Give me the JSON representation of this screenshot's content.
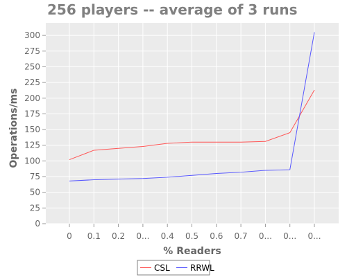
{
  "chart_data": {
    "type": "line",
    "title": "256 players -- average of 3 runs",
    "xlabel": "% Readers",
    "ylabel": "Operations/ms",
    "categories": [
      "0",
      "0.1",
      "0.2",
      "0...",
      "0.4",
      "0.5",
      "0.6",
      "0.7",
      "0...",
      "0...",
      "0..."
    ],
    "ylim": [
      0,
      320
    ],
    "yticks": [
      0,
      25,
      50,
      75,
      100,
      125,
      150,
      175,
      200,
      225,
      250,
      275,
      300
    ],
    "grid": true,
    "legend_position": "bottom-center",
    "series": [
      {
        "name": "CSL",
        "color": "#ff5555",
        "values": [
          102,
          117,
          120,
          123,
          128,
          130,
          130,
          130,
          131,
          145,
          213
        ]
      },
      {
        "name": "RRWL",
        "color": "#5555ff",
        "values": [
          68,
          70,
          71,
          72,
          74,
          77,
          80,
          82,
          85,
          86,
          305
        ]
      }
    ]
  }
}
